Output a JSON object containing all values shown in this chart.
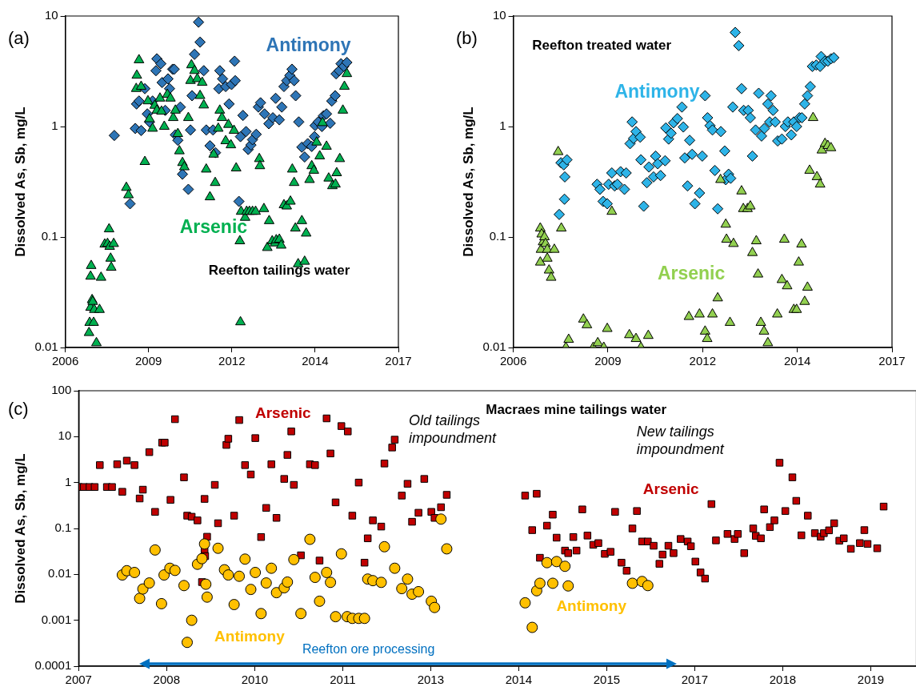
{
  "chart_data": [
    {
      "type": "scatter",
      "title": "(a)",
      "ylabel": "Dissolved As, Sb, mg/L",
      "annotations": [
        "Reefton tailings water"
      ],
      "xlim": [
        2006.25,
        2017.05
      ],
      "xticks": [
        {
          "value": 2006.25,
          "label": "2006"
        },
        {
          "value": 2008.95,
          "label": "2009"
        },
        {
          "value": 2011.65,
          "label": "2012"
        },
        {
          "value": 2014.35,
          "label": "2014"
        },
        {
          "value": 2017.05,
          "label": "2017"
        }
      ],
      "ylim": [
        0.01,
        10
      ],
      "yticks": [
        0.01,
        0.1,
        1,
        10
      ],
      "log": "y",
      "grid": false,
      "legend": false,
      "series": [
        {
          "name": "Antimony",
          "color": "#2e75b6",
          "marker": "diamond",
          "x": [
            2007.84,
            2008.35,
            2008.52,
            2008.71,
            2008.56,
            2008.64,
            2008.83,
            2008.91,
            2008.98,
            2009.08,
            2009.22,
            2009.19,
            2009.35,
            2009.39,
            2009.49,
            2009.58,
            2009.63,
            2009.73,
            2009.78,
            2009.82,
            2009.9,
            2009.98,
            2010.05,
            2010.24,
            2010.31,
            2010.36,
            2010.44,
            2010.57,
            2010.62,
            2010.74,
            2010.82,
            2011.04,
            2010.94,
            2011.12,
            2011.23,
            2011.26,
            2011.35,
            2011.45,
            2011.56,
            2011.64,
            2011.76,
            2011.74,
            2011.88,
            2011.93,
            2012.01,
            2012.11,
            2012.18,
            2012.27,
            2012.32,
            2012.44,
            2012.51,
            2012.58,
            2012.71,
            2012.85,
            2012.98,
            2013.07,
            2013.19,
            2013.27,
            2013.34,
            2013.43,
            2013.53,
            2013.6,
            2013.67,
            2013.72,
            2013.82,
            2013.92,
            2014.01,
            2014.11,
            2014.24,
            2014.33,
            2014.35,
            2014.45,
            2014.57,
            2014.62,
            2014.72,
            2014.84,
            2014.89,
            2015.0,
            2015.03,
            2015.13,
            2015.19,
            2015.28,
            2015.38
          ],
          "values": [
            0.83,
            0.2,
            0.96,
            0.92,
            1.6,
            1.7,
            2.2,
            1.3,
            1.1,
            1.7,
            4.1,
            3.2,
            3.7,
            2.5,
            1.4,
            2.7,
            2.2,
            3.3,
            3.3,
            0.84,
            0.75,
            1.5,
            0.37,
            0.27,
            0.93,
            1.9,
            4.5,
            8.8,
            5.8,
            3.2,
            0.93,
            0.93,
            0.67,
            0.58,
            2.2,
            3.2,
            2.7,
            2.3,
            1.6,
            2.4,
            2.6,
            3.9,
            0.21,
            0.81,
            1.26,
            0.9,
            0.62,
            0.68,
            0.76,
            0.85,
            1.5,
            1.64,
            1.3,
            1.06,
            1.2,
            1.8,
            1.15,
            1.5,
            2.3,
            2.6,
            2.9,
            3.3,
            2.6,
            1.9,
            1.1,
            0.65,
            0.53,
            0.7,
            0.66,
            0.81,
            1.02,
            1.1,
            1.0,
            1.25,
            1.3,
            1.07,
            1.7,
            1.9,
            3.0,
            3.2,
            3.7,
            3.5,
            3.8
          ]
        },
        {
          "name": "Arsenic",
          "color": "#00b050",
          "marker": "triangle",
          "x": [
            2007.02,
            2007.04,
            2007.07,
            2007.09,
            2007.07,
            2007.12,
            2007.14,
            2007.17,
            2007.19,
            2007.26,
            2007.36,
            2007.41,
            2007.53,
            2007.62,
            2007.67,
            2007.69,
            2007.72,
            2007.74,
            2007.82,
            2008.23,
            2008.3,
            2008.55,
            2008.57,
            2008.64,
            2008.71,
            2008.83,
            2008.93,
            2008.98,
            2009.08,
            2009.15,
            2009.22,
            2009.32,
            2009.37,
            2009.46,
            2009.56,
            2009.66,
            2009.75,
            2009.82,
            2009.9,
            2009.95,
            2010.05,
            2010.11,
            2010.24,
            2010.31,
            2010.34,
            2010.44,
            2010.53,
            2010.62,
            2010.69,
            2010.74,
            2010.82,
            2010.94,
            2011.06,
            2011.11,
            2011.21,
            2011.26,
            2011.33,
            2011.45,
            2011.54,
            2011.62,
            2011.72,
            2011.79,
            2011.91,
            2011.93,
            2011.95,
            2012.08,
            2012.13,
            2012.22,
            2012.32,
            2012.42,
            2012.69,
            2012.54,
            2012.56,
            2012.8,
            2012.86,
            2012.96,
            2013.05,
            2013.09,
            2013.19,
            2013.25,
            2013.34,
            2013.43,
            2013.55,
            2013.61,
            2013.67,
            2013.71,
            2013.8,
            2013.92,
            2014.01,
            2014.06,
            2014.17,
            2014.24,
            2014.31,
            2014.4,
            2014.5,
            2014.59,
            2014.72,
            2014.79,
            2014.91,
            2015.01,
            2015.05,
            2015.15,
            2015.25,
            2015.3,
            2015.38
          ],
          "values": [
            0.0136,
            0.0168,
            0.023,
            0.055,
            0.044,
            0.027,
            0.026,
            0.0168,
            0.022,
            0.011,
            0.022,
            0.043,
            0.086,
            0.087,
            0.118,
            0.082,
            0.064,
            0.053,
            0.087,
            0.28,
            0.24,
            2.2,
            2.9,
            4.0,
            2.3,
            0.48,
            1.7,
            1.17,
            0.96,
            1.55,
            1.4,
            1.8,
            1.37,
            1.0,
            1.95,
            1.8,
            1.2,
            1.4,
            0.86,
            0.6,
            0.47,
            0.43,
            1.2,
            2.6,
            3.6,
            3.2,
            2.7,
            1.9,
            2.5,
            1.56,
            0.41,
            0.23,
            0.56,
            0.31,
            0.96,
            1.4,
            1.2,
            0.74,
            1.04,
            0.68,
            0.92,
            0.42,
            0.092,
            0.017,
            0.17,
            0.15,
            0.17,
            0.17,
            0.17,
            0.17,
            0.18,
            0.51,
            0.44,
            0.08,
            0.14,
            0.092,
            0.088,
            0.094,
            0.095,
            0.084,
            0.195,
            0.19,
            0.21,
            0.41,
            0.31,
            0.12,
            0.057,
            0.14,
            0.06,
            0.108,
            0.33,
            0.44,
            0.4,
            0.72,
            0.54,
            1.08,
            0.66,
            0.34,
            0.29,
            0.3,
            0.38,
            0.51,
            1.4,
            2.3,
            3.0
          ]
        }
      ]
    },
    {
      "type": "scatter",
      "title": "(b)",
      "ylabel": "Dissolved As, Sb, mg/L",
      "annotations": [
        "Reefton treated water"
      ],
      "xlim": [
        2006.25,
        2017.05
      ],
      "xticks": [
        {
          "value": 2006.25,
          "label": "2006"
        },
        {
          "value": 2008.95,
          "label": "2009"
        },
        {
          "value": 2011.65,
          "label": "2012"
        },
        {
          "value": 2014.35,
          "label": "2014"
        },
        {
          "value": 2017.05,
          "label": "2017"
        }
      ],
      "ylim": [
        0.01,
        10
      ],
      "yticks": [
        0.01,
        0.1,
        1,
        10
      ],
      "log": "y",
      "grid": false,
      "legend": false,
      "series": [
        {
          "name": "Antimony",
          "color": "#2eb4e8",
          "marker": "diamond",
          "x": [
            2007.56,
            2007.61,
            2007.69,
            2007.78,
            2007.71,
            2007.72,
            2008.64,
            2008.72,
            2008.81,
            2008.93,
            2008.97,
            2009.06,
            2009.14,
            2009.22,
            2009.31,
            2009.42,
            2009.47,
            2009.58,
            2009.64,
            2009.68,
            2009.75,
            2009.87,
            2009.89,
            2009.97,
            2010.06,
            2010.12,
            2010.25,
            2010.31,
            2010.37,
            2010.45,
            2010.58,
            2010.6,
            2010.68,
            2010.75,
            2010.82,
            2010.93,
            2011.06,
            2011.1,
            2011.14,
            2011.28,
            2011.35,
            2011.22,
            2011.43,
            2011.56,
            2011.64,
            2011.72,
            2011.79,
            2011.86,
            2011.93,
            2012.0,
            2012.08,
            2012.17,
            2012.28,
            2012.31,
            2012.39,
            2012.45,
            2012.51,
            2012.58,
            2012.68,
            2012.76,
            2012.82,
            2012.95,
            2013.01,
            2013.07,
            2013.16,
            2013.25,
            2013.33,
            2013.41,
            2013.51,
            2013.6,
            2013.66,
            2013.56,
            2013.72,
            2013.79,
            2013.91,
            2014.01,
            2014.08,
            2014.18,
            2014.25,
            2014.33,
            2014.41,
            2014.48,
            2014.56,
            2014.64,
            2014.72,
            2014.78,
            2014.89,
            2015.03,
            2015.0,
            2015.14,
            2015.22,
            2015.31,
            2015.39
          ],
          "values": [
            0.16,
            0.47,
            0.45,
            0.5,
            0.22,
            0.35,
            0.3,
            0.27,
            0.21,
            0.2,
            0.3,
            0.38,
            0.29,
            0.3,
            0.39,
            0.27,
            0.38,
            0.7,
            1.1,
            0.78,
            0.9,
            0.8,
            0.5,
            0.19,
            0.31,
            0.43,
            0.35,
            0.54,
            0.46,
            0.36,
            0.49,
            0.97,
            0.77,
            0.87,
            1.08,
            1.18,
            1.5,
            0.99,
            0.52,
            0.75,
            0.56,
            0.29,
            0.2,
            0.25,
            0.54,
            1.9,
            1.2,
            1.02,
            0.93,
            0.4,
            0.18,
            0.9,
            0.6,
            0.33,
            0.37,
            0.34,
            1.5,
            7.1,
            5.4,
            2.2,
            1.4,
            1.4,
            1.2,
            0.54,
            0.93,
            2.0,
            0.82,
            0.96,
            1.6,
            1.9,
            1.4,
            1.1,
            1.1,
            0.74,
            0.77,
            1.0,
            1.1,
            0.84,
            1.1,
            1.0,
            1.2,
            1.2,
            1.6,
            1.9,
            2.3,
            3.5,
            3.6,
            4.3,
            3.5,
            3.9,
            3.9,
            4.1,
            4.2
          ]
        },
        {
          "name": "Arsenic",
          "color": "#92d050",
          "marker": "triangle",
          "x": [
            2007.02,
            2007.06,
            2007.1,
            2007.04,
            2007.14,
            2007.17,
            2007.22,
            2007.02,
            2007.22,
            2007.27,
            2007.33,
            2007.42,
            2007.62,
            2007.53,
            2007.75,
            2007.83,
            2008.25,
            2008.35,
            2008.53,
            2008.66,
            2008.83,
            2008.93,
            2009.06,
            2009.56,
            2009.75,
            2009.89,
            2010.1,
            2011.26,
            2011.56,
            2011.72,
            2011.78,
            2011.93,
            2012.08,
            2012.16,
            2012.31,
            2012.33,
            2012.43,
            2012.53,
            2012.76,
            2012.81,
            2012.93,
            2013.01,
            2013.07,
            2013.18,
            2013.23,
            2013.31,
            2013.4,
            2013.51,
            2013.78,
            2013.98,
            2013.91,
            2014.06,
            2014.25,
            2014.33,
            2014.39,
            2014.47,
            2014.56,
            2014.64,
            2014.7,
            2014.8,
            2014.91,
            2015.0,
            2015.05,
            2015.14,
            2015.22,
            2015.31
          ],
          "values": [
            0.12,
            0.106,
            0.09,
            0.077,
            0.1,
            0.087,
            0.077,
            0.059,
            0.064,
            0.05,
            0.043,
            0.077,
            0.12,
            0.59,
            0.01,
            0.0118,
            0.018,
            0.016,
            0.01,
            0.011,
            0.01,
            0.0148,
            0.17,
            0.013,
            0.012,
            0.01,
            0.0128,
            0.019,
            0.02,
            0.014,
            0.012,
            0.02,
            0.028,
            0.33,
            0.13,
            0.095,
            0.0168,
            0.087,
            0.26,
            0.18,
            0.18,
            0.19,
            0.072,
            0.092,
            0.046,
            0.0168,
            0.014,
            0.011,
            0.02,
            0.095,
            0.041,
            0.036,
            0.022,
            0.022,
            0.059,
            0.086,
            0.026,
            0.035,
            0.4,
            1.2,
            0.35,
            0.3,
            0.61,
            0.7,
            0.67,
            0.64
          ]
        }
      ]
    },
    {
      "type": "scatter",
      "title": "(c)",
      "ylabel": "Dissolved As, Sb, mg/L",
      "annotations": [
        "Macraes mine tailings water",
        "Old tailings impoundment",
        "New tailings impoundment",
        "Reefton ore processing"
      ],
      "xlim": [
        2007.07,
        2020.11
      ],
      "xticks": [
        {
          "value": 2007.07,
          "label": "2007"
        },
        {
          "value": 2008.44,
          "label": "2008"
        },
        {
          "value": 2009.81,
          "label": "2010"
        },
        {
          "value": 2011.18,
          "label": "2011"
        },
        {
          "value": 2012.55,
          "label": "2013"
        },
        {
          "value": 2013.92,
          "label": "2014"
        },
        {
          "value": 2015.29,
          "label": "2015"
        },
        {
          "value": 2016.66,
          "label": "2017"
        },
        {
          "value": 2018.03,
          "label": "2018"
        },
        {
          "value": 2019.4,
          "label": "2019"
        }
      ],
      "ylim": [
        0.0001,
        100
      ],
      "yticks": [
        0.0001,
        0.001,
        0.01,
        0.1,
        1,
        10,
        100
      ],
      "log": "y",
      "grid": false,
      "legend": false,
      "series": [
        {
          "name": "Arsenic",
          "color": "#c00000",
          "marker": "square",
          "x": [
            2007.07,
            2007.15,
            2007.24,
            2007.32,
            2007.4,
            2007.51,
            2007.59,
            2007.67,
            2007.75,
            2007.82,
            2007.94,
            2008.02,
            2008.07,
            2008.17,
            2008.26,
            2008.37,
            2008.41,
            2008.5,
            2008.57,
            2008.71,
            2008.76,
            2008.83,
            2008.92,
            2009.03,
            2009.07,
            2009.03,
            2009.04,
            2008.99,
            2009.19,
            2009.24,
            2009.37,
            2009.4,
            2009.49,
            2009.57,
            2009.66,
            2009.75,
            2009.82,
            2009.91,
            2009.99,
            2010.07,
            2010.15,
            2010.27,
            2010.32,
            2010.38,
            2010.42,
            2010.53,
            2010.67,
            2010.75,
            2010.82,
            2010.93,
            2010.99,
            2011.07,
            2011.16,
            2011.26,
            2011.33,
            2011.43,
            2011.52,
            2011.57,
            2011.65,
            2011.78,
            2011.83,
            2011.95,
            2011.99,
            2012.1,
            2012.19,
            2012.26,
            2012.36,
            2012.45,
            2012.56,
            2012.61,
            2012.71,
            2012.8,
            2014.02,
            2014.13,
            2014.2,
            2014.25,
            2014.36,
            2014.45,
            2014.51,
            2014.64,
            2014.69,
            2014.77,
            2014.82,
            2014.91,
            2014.99,
            2015.08,
            2015.16,
            2015.26,
            2015.35,
            2015.42,
            2015.52,
            2015.6,
            2015.69,
            2015.76,
            2015.84,
            2015.93,
            2016.02,
            2016.11,
            2016.16,
            2016.25,
            2016.33,
            2016.44,
            2016.55,
            2016.6,
            2016.67,
            2016.75,
            2016.82,
            2016.92,
            2016.99,
            2017.17,
            2017.28,
            2017.33,
            2017.43,
            2017.57,
            2017.61,
            2017.69,
            2017.74,
            2017.83,
            2017.9,
            2017.98,
            2018.07,
            2018.18,
            2018.24,
            2018.32,
            2018.42,
            2018.53,
            2018.62,
            2018.67,
            2018.75,
            2018.83,
            2018.91,
            2018.98,
            2019.09,
            2019.23,
            2019.3,
            2019.35,
            2019.5,
            2019.6
          ],
          "values": [
            0.8,
            0.8,
            0.8,
            0.8,
            2.4,
            0.8,
            0.8,
            2.5,
            0.63,
            3.0,
            2.4,
            0.45,
            0.7,
            4.6,
            0.23,
            7.4,
            7.4,
            0.42,
            24,
            1.3,
            0.19,
            0.18,
            0.15,
            0.44,
            0.066,
            0.034,
            0.025,
            0.0068,
            0.89,
            0.13,
            6.6,
            9.0,
            0.19,
            23,
            2.4,
            1.5,
            9.3,
            0.065,
            0.28,
            2.5,
            0.17,
            1.2,
            4.0,
            13,
            0.89,
            0.026,
            2.5,
            2.4,
            0.02,
            25,
            4.3,
            0.37,
            17,
            13,
            0.19,
            1.0,
            0.018,
            0.061,
            0.15,
            0.11,
            2.6,
            5.8,
            8.6,
            0.52,
            0.94,
            0.14,
            0.22,
            1.2,
            0.23,
            0.17,
            0.29,
            0.54,
            0.52,
            0.092,
            0.57,
            0.023,
            0.115,
            0.2,
            0.063,
            0.033,
            0.029,
            0.065,
            0.033,
            0.26,
            0.07,
            0.044,
            0.048,
            0.028,
            0.031,
            0.23,
            0.018,
            0.012,
            0.1,
            0.24,
            0.052,
            0.052,
            0.042,
            0.017,
            0.027,
            0.042,
            0.029,
            0.059,
            0.052,
            0.041,
            0.019,
            0.011,
            0.0081,
            0.34,
            0.055,
            0.076,
            0.059,
            0.076,
            0.029,
            0.1,
            0.069,
            0.061,
            0.26,
            0.107,
            0.15,
            2.7,
            0.24,
            1.3,
            0.4,
            0.071,
            0.19,
            0.079,
            0.066,
            0.079,
            0.091,
            0.13,
            0.054,
            0.061,
            0.036,
            0.048,
            0.092,
            0.046,
            0.037,
            0.3
          ]
        },
        {
          "name": "Antimony",
          "color": "#ffc000",
          "marker": "circle",
          "x": [
            2007.75,
            2007.82,
            2007.94,
            2008.02,
            2008.07,
            2008.17,
            2008.26,
            2008.36,
            2008.4,
            2008.49,
            2008.57,
            2008.71,
            2008.76,
            2008.83,
            2008.92,
            2008.99,
            2009.03,
            2009.05,
            2009.07,
            2009.24,
            2009.34,
            2009.4,
            2009.49,
            2009.57,
            2009.66,
            2009.75,
            2009.82,
            2009.91,
            2009.99,
            2010.07,
            2010.15,
            2010.27,
            2010.32,
            2010.42,
            2010.53,
            2010.67,
            2010.75,
            2010.82,
            2010.93,
            2010.99,
            2011.07,
            2011.16,
            2011.25,
            2011.33,
            2011.43,
            2011.52,
            2011.57,
            2011.65,
            2011.78,
            2011.83,
            2011.99,
            2012.1,
            2012.19,
            2012.26,
            2012.36,
            2012.56,
            2012.61,
            2012.71,
            2012.8,
            2014.02,
            2014.13,
            2014.2,
            2014.25,
            2014.36,
            2014.45,
            2014.51,
            2014.64,
            2014.69,
            2015.69,
            2015.84,
            2015.93
          ],
          "values": [
            0.0097,
            0.012,
            0.011,
            0.003,
            0.0048,
            0.0065,
            0.034,
            0.0023,
            0.0097,
            0.0136,
            0.0122,
            0.0057,
            0.00033,
            0.001,
            0.0166,
            0.022,
            0.046,
            0.0061,
            0.0032,
            0.037,
            0.0126,
            0.0097,
            0.0022,
            0.0091,
            0.0215,
            0.0047,
            0.011,
            0.0014,
            0.0065,
            0.0136,
            0.004,
            0.0051,
            0.0068,
            0.021,
            0.0014,
            0.058,
            0.0086,
            0.0026,
            0.011,
            0.0067,
            0.0012,
            0.028,
            0.0012,
            0.0011,
            0.0011,
            0.0011,
            0.0079,
            0.0073,
            0.0067,
            0.04,
            0.0136,
            0.0049,
            0.0079,
            0.0037,
            0.0042,
            0.0026,
            0.0019,
            0.16,
            0.036,
            0.0024,
            0.0007,
            0.0044,
            0.0064,
            0.018,
            0.0064,
            0.019,
            0.015,
            0.0056,
            0.0064,
            0.007,
            0.0057
          ]
        }
      ]
    }
  ]
}
